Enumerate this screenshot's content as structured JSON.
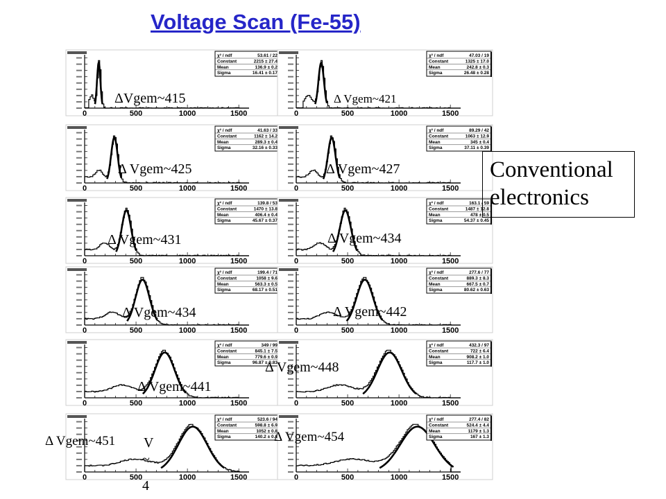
{
  "title": "Voltage Scan (Fe-55)",
  "side_label": {
    "line1": "Conventional",
    "line2": "electronics"
  },
  "stray_text": [
    "V",
    "~",
    "4"
  ],
  "chart_data": [
    {
      "type": "line",
      "label": "ΔVgem~415",
      "x": [
        0,
        1500
      ],
      "stats": {
        "chi2_ndf": "53.61 / 22",
        "constant": "2215 ± 27.4",
        "mean": "136.9 ± 0.2",
        "sigma": "16.41 ± 0.17"
      },
      "peak": 136.9,
      "sigma": 16.41,
      "xticks": [
        "0",
        "500",
        "1000",
        "1500"
      ]
    },
    {
      "type": "line",
      "label": "Δ Vgem~421",
      "x": [
        0,
        1500
      ],
      "stats": {
        "chi2_ndf": "47.03 / 19",
        "constant": "1325 ± 17.0",
        "mean": "242.8 ± 0.3",
        "sigma": "26.48 ± 0.28"
      },
      "peak": 242.8,
      "sigma": 26.48,
      "xticks": [
        "0",
        "500",
        "1000",
        "1500"
      ]
    },
    {
      "type": "line",
      "label": "Δ Vgem~425",
      "x": [
        0,
        1500
      ],
      "stats": {
        "chi2_ndf": "41.63 / 33",
        "constant": "1162 ± 14.2",
        "mean": "289.3 ± 0.4",
        "sigma": "32.16 ± 0.33"
      },
      "peak": 289.3,
      "sigma": 32.16,
      "xticks": [
        "0",
        "500",
        "1000",
        "1500"
      ]
    },
    {
      "type": "line",
      "label": "Δ Vgem~427",
      "x": [
        0,
        1500
      ],
      "stats": {
        "chi2_ndf": "89.29 / 42",
        "constant": "1063 ± 12.9",
        "mean": "345 ± 0.4",
        "sigma": "37.11 ± 0.39"
      },
      "peak": 345,
      "sigma": 37.11,
      "xticks": [
        "0",
        "500",
        "1000",
        "1500"
      ]
    },
    {
      "type": "line",
      "label": "Δ Vgem~431",
      "x": [
        0,
        1500
      ],
      "stats": {
        "chi2_ndf": "139.8 / 53",
        "constant": "1470 ± 13.8",
        "mean": "406.4 ± 0.4",
        "sigma": "45.67 ± 0.37"
      },
      "peak": 406.4,
      "sigma": 45.67,
      "xticks": [
        "0",
        "500",
        "1000",
        "1500"
      ]
    },
    {
      "type": "line",
      "label": "Δ Vgem~434",
      "x": [
        0,
        1500
      ],
      "stats": {
        "chi2_ndf": "163.1 / 59",
        "constant": "1487 ± 12.8",
        "mean": "478 ± 0.5",
        "sigma": "54.37 ± 0.45"
      },
      "peak": 478,
      "sigma": 54.37,
      "xticks": [
        "0",
        "500",
        "1000",
        "1500"
      ]
    },
    {
      "type": "line",
      "label": "Δ Vgem~434",
      "x": [
        0,
        1500
      ],
      "stats": {
        "chi2_ndf": "199.4 / 71",
        "constant": "1058 ± 9.6",
        "mean": "563.3 ± 0.5",
        "sigma": "68.17 ± 0.51"
      },
      "peak": 563.3,
      "sigma": 68.17,
      "xticks": [
        "0",
        "500",
        "1000",
        "1500"
      ]
    },
    {
      "type": "line",
      "label": "Δ Vgem~442",
      "x": [
        0,
        1500
      ],
      "stats": {
        "chi2_ndf": "277.6 / 77",
        "constant": "889.3 ± 8.3",
        "mean": "667.5 ± 0.7",
        "sigma": "80.62 ± 0.63"
      },
      "peak": 667.5,
      "sigma": 80.62,
      "xticks": [
        "0",
        "500",
        "1000",
        "1500"
      ]
    },
    {
      "type": "line",
      "label": "Δ Vgem~441",
      "x": [
        0,
        1500
      ],
      "stats": {
        "chi2_ndf": "349 / 99",
        "constant": "845.1 ± 7.5",
        "mean": "779.6 ± 0.9",
        "sigma": "96.87 ± 0.83"
      },
      "peak": 779.6,
      "sigma": 96.87,
      "xticks": [
        "0",
        "500",
        "1000",
        "1500"
      ]
    },
    {
      "type": "line",
      "label": "Δ Vgem~448",
      "x": [
        0,
        1500
      ],
      "stats": {
        "chi2_ndf": "432.3 / 97",
        "constant": "722 ± 6.4",
        "mean": "908.2 ± 1.0",
        "sigma": "117.7 ± 1.0"
      },
      "peak": 908.2,
      "sigma": 117.7,
      "xticks": [
        "0",
        "500",
        "1000",
        "1500"
      ]
    },
    {
      "type": "line",
      "label": "Δ Vgem~451",
      "x": [
        0,
        1500
      ],
      "stats": {
        "chi2_ndf": "523.6 / 94",
        "constant": "598.8 ± 6.9",
        "mean": "1052 ± 0.8",
        "sigma": "140.2 ± 0.8"
      },
      "peak": 1052,
      "sigma": 140.2,
      "xticks": [
        "0",
        "500",
        "1000",
        "1500"
      ]
    },
    {
      "type": "line",
      "label": "Δ Vgem~454",
      "x": [
        0,
        1500
      ],
      "stats": {
        "chi2_ndf": "277.4 / 82",
        "constant": "524.4 ± 4.4",
        "mean": "1179 ± 1.3",
        "sigma": "167 ± 1.3"
      },
      "peak": 1179,
      "sigma": 167,
      "xticks": [
        "0",
        "500",
        "1000",
        "1500"
      ]
    }
  ]
}
